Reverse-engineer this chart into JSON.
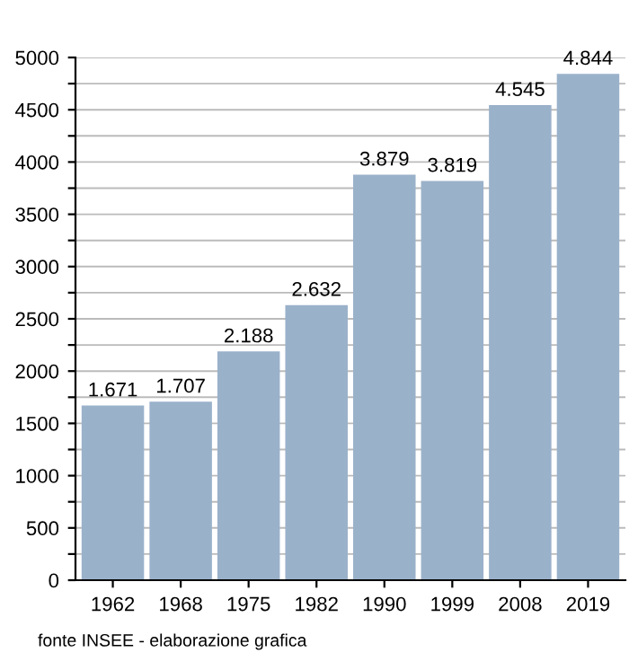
{
  "chart_data": {
    "type": "bar",
    "categories": [
      "1962",
      "1968",
      "1975",
      "1982",
      "1990",
      "1999",
      "2008",
      "2019"
    ],
    "values": [
      1671,
      1707,
      2188,
      2632,
      3879,
      3819,
      4545,
      4844
    ],
    "value_labels": [
      "1.671",
      "1.707",
      "2.188",
      "2.632",
      "3.879",
      "3.819",
      "4.545",
      "4.844"
    ],
    "color": "#9ab1ca",
    "ylim": [
      0,
      5000
    ],
    "yticks": [
      0,
      {
        "value": 250,
        "label": null
      },
      500,
      {
        "value": 750,
        "label": null
      },
      1000,
      {
        "value": 1250,
        "label": null
      },
      1500,
      {
        "value": 1750,
        "label": null
      },
      2000,
      {
        "value": 2250,
        "label": null
      },
      2500,
      {
        "value": 2750,
        "label": null
      },
      3000,
      {
        "value": 3250,
        "label": null
      },
      3500,
      {
        "value": 3750,
        "label": null
      },
      4000,
      {
        "value": 4250,
        "label": null
      },
      4500,
      {
        "value": 4750,
        "label": null
      },
      5000
    ],
    "grid": "y",
    "annotations": [
      "fonte INSEE - elaborazione grafica"
    ]
  }
}
